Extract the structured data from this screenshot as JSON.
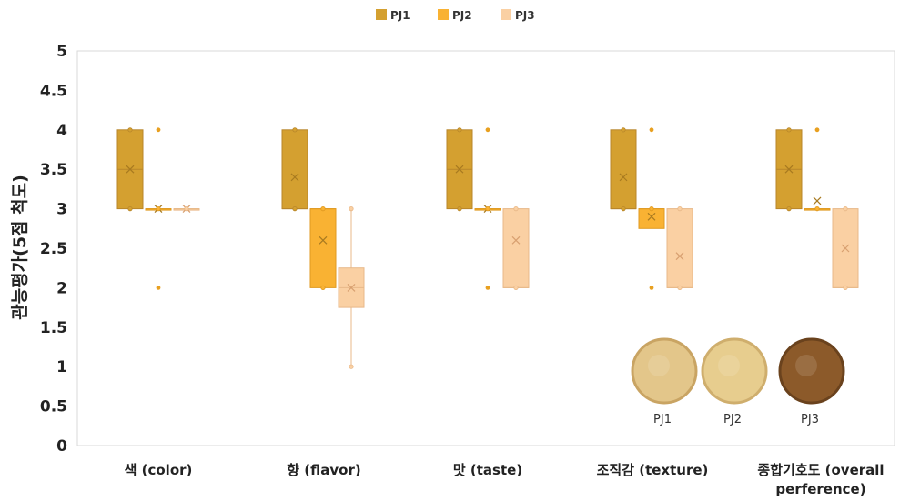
{
  "chart_data": {
    "type": "box",
    "ylabel": "관능평가(5점 척도)",
    "ylim": [
      0,
      5
    ],
    "yticks": [
      "0",
      "0.5",
      "1",
      "1.5",
      "2",
      "2.5",
      "3",
      "3.5",
      "4",
      "4.5",
      "5"
    ],
    "legend_position": "top-center",
    "categories": [
      {
        "lines": [
          "색 (color)"
        ]
      },
      {
        "lines": [
          "향 (flavor)"
        ]
      },
      {
        "lines": [
          "맛 (taste)"
        ]
      },
      {
        "lines": [
          "조직감 (texture)"
        ]
      },
      {
        "lines": [
          "종합기호도 (overall",
          "perference)"
        ]
      }
    ],
    "series": [
      {
        "name": "PJ1",
        "color": "#D4A030",
        "boxes": [
          {
            "q1": 3,
            "median": 3.5,
            "q3": 4,
            "mean": 3.5,
            "whisker_low": 3,
            "whisker_high": 4,
            "points": [
              3,
              4
            ],
            "outliers": []
          },
          {
            "q1": 3,
            "median": 3,
            "q3": 4,
            "mean": 3.4,
            "whisker_low": 3,
            "whisker_high": 4,
            "points": [
              3,
              4
            ],
            "outliers": []
          },
          {
            "q1": 3,
            "median": 3.5,
            "q3": 4,
            "mean": 3.5,
            "whisker_low": 3,
            "whisker_high": 4,
            "points": [
              3,
              4
            ],
            "outliers": []
          },
          {
            "q1": 3,
            "median": 3,
            "q3": 4,
            "mean": 3.4,
            "whisker_low": 3,
            "whisker_high": 4,
            "points": [
              3,
              4
            ],
            "outliers": []
          },
          {
            "q1": 3,
            "median": 3.5,
            "q3": 4,
            "mean": 3.5,
            "whisker_low": 3,
            "whisker_high": 4,
            "points": [
              3,
              4
            ],
            "outliers": []
          }
        ]
      },
      {
        "name": "PJ2",
        "color": "#F9B233",
        "boxes": [
          {
            "q1": 3,
            "median": 3,
            "q3": 3,
            "mean": 3,
            "whisker_low": 3,
            "whisker_high": 3,
            "points": [
              3
            ],
            "outliers": [
              2,
              4
            ]
          },
          {
            "q1": 2,
            "median": 3,
            "q3": 3,
            "mean": 2.6,
            "whisker_low": 2,
            "whisker_high": 3,
            "points": [
              2,
              3
            ],
            "outliers": []
          },
          {
            "q1": 3,
            "median": 3,
            "q3": 3,
            "mean": 3,
            "whisker_low": 3,
            "whisker_high": 3,
            "points": [
              3
            ],
            "outliers": [
              2,
              4
            ]
          },
          {
            "q1": 2.75,
            "median": 3,
            "q3": 3,
            "mean": 2.9,
            "whisker_low": 2.75,
            "whisker_high": 3,
            "points": [
              3
            ],
            "outliers": [
              2,
              4
            ]
          },
          {
            "q1": 3,
            "median": 3,
            "q3": 3,
            "mean": 3.1,
            "whisker_low": 3,
            "whisker_high": 3,
            "points": [
              3
            ],
            "outliers": [
              4
            ]
          }
        ]
      },
      {
        "name": "PJ3",
        "color": "#FAD0A3",
        "boxes": [
          {
            "q1": 3,
            "median": 3,
            "q3": 3,
            "mean": 3,
            "whisker_low": 3,
            "whisker_high": 3,
            "points": [
              3
            ],
            "outliers": []
          },
          {
            "q1": 1.75,
            "median": 2,
            "q3": 2.25,
            "mean": 2,
            "whisker_low": 1,
            "whisker_high": 3,
            "points": [
              1,
              3
            ],
            "outliers": []
          },
          {
            "q1": 2,
            "median": 2,
            "q3": 3,
            "mean": 2.6,
            "whisker_low": 2,
            "whisker_high": 3,
            "points": [
              2,
              3
            ],
            "outliers": []
          },
          {
            "q1": 2,
            "median": 2,
            "q3": 3,
            "mean": 2.4,
            "whisker_low": 2,
            "whisker_high": 3,
            "points": [
              2,
              3
            ],
            "outliers": []
          },
          {
            "q1": 2,
            "median": 2,
            "q3": 3,
            "mean": 2.5,
            "whisker_low": 2,
            "whisker_high": 3,
            "points": [
              2,
              3
            ],
            "outliers": []
          }
        ]
      }
    ]
  },
  "inset": {
    "samples": [
      {
        "label": "PJ1",
        "fill": "#E3C68A",
        "rim": "#C9A463"
      },
      {
        "label": "PJ2",
        "fill": "#E7CD8E",
        "rim": "#CFAE6D"
      },
      {
        "label": "PJ3",
        "fill": "#8C5A2A",
        "rim": "#6A421D"
      }
    ]
  }
}
